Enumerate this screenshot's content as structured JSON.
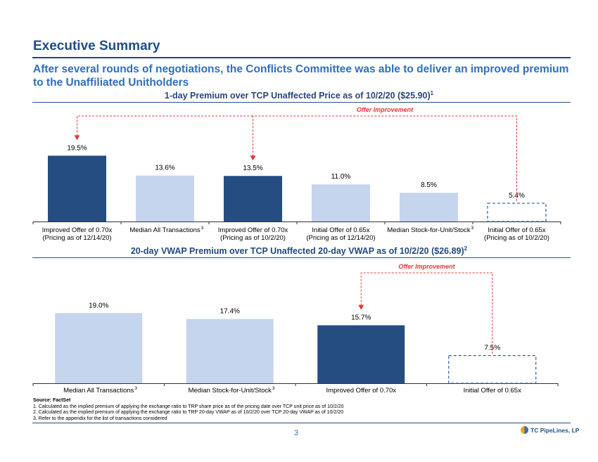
{
  "header": {
    "title": "Executive Summary",
    "subtitle": "After several rounds of negotiations, the Conflicts Committee was able to deliver an improved premium to the Unaffiliated Unitholders"
  },
  "colors": {
    "dark_bar": "#254d82",
    "light_bar": "#c5d5ee",
    "dashed_outline": "#2a5ea8",
    "callout": "#e03a35",
    "accent": "#2f6fc0"
  },
  "chart_data": [
    {
      "type": "bar",
      "title": "1-day Premium over TCP Unaffected Price as of 10/2/20 ($25.90)",
      "title_footnote": "1",
      "callout": "Offer Improvement",
      "categories": [
        [
          "Improved Offer of 0.70x",
          "(Pricing as of 12/14/20)"
        ],
        [
          "Median All Transactions",
          ""
        ],
        [
          "Improved Offer of 0.70x",
          "(Pricing as of 10/2/20)"
        ],
        [
          "Initial Offer of 0.65x",
          "(Pricing as of 12/14/20)"
        ],
        [
          "Median Stock-for-Unit/Stock",
          ""
        ],
        [
          "Initial Offer of 0.65x",
          "(Pricing as of 10/2/20)"
        ]
      ],
      "category_footnotes": [
        "",
        "3",
        "",
        "",
        "3",
        ""
      ],
      "values": [
        19.5,
        13.6,
        13.5,
        11.0,
        8.5,
        5.4
      ],
      "value_labels": [
        "19.5%",
        "13.6%",
        "13.5%",
        "11.0%",
        "8.5%",
        "5.4%"
      ],
      "styles": [
        "dark",
        "light",
        "dark",
        "light",
        "light",
        "dashed"
      ],
      "ylim": [
        0,
        25
      ]
    },
    {
      "type": "bar",
      "title": "20-day VWAP Premium over TCP Unaffected 20-day VWAP as of 10/2/20 ($26.89)",
      "title_footnote": "2",
      "callout": "Offer Improvement",
      "categories": [
        [
          "Median All Transactions",
          ""
        ],
        [
          "Median Stock-for-Unit/Stock",
          ""
        ],
        [
          "Improved Offer of 0.70x",
          ""
        ],
        [
          "Initial Offer of 0.65x",
          ""
        ]
      ],
      "category_footnotes": [
        "3",
        "3",
        "",
        ""
      ],
      "values": [
        19.0,
        17.4,
        15.7,
        7.5
      ],
      "value_labels": [
        "19.0%",
        "17.4%",
        "15.7%",
        "7.5%"
      ],
      "styles": [
        "light",
        "light",
        "dark",
        "dashed"
      ],
      "ylim": [
        0,
        25
      ]
    }
  ],
  "footnotes": {
    "source": "Source: FactSet",
    "items": [
      "1.    Calculated as the implied premium of applying the exchange ratio to TRP share price as of the pricing date over TCP unit price as of 10/2/20",
      "2.    Calculated as the implied premium of applying the exchange ratio to TRP 20-day VWAP as of 10/2/20 over TCP 20-day VWAP as of 10/2/20",
      "3.    Refer to the appendix for the list of transactions considered"
    ]
  },
  "footer": {
    "page_number": "3",
    "logo_text": "TC PipeLines, LP"
  }
}
